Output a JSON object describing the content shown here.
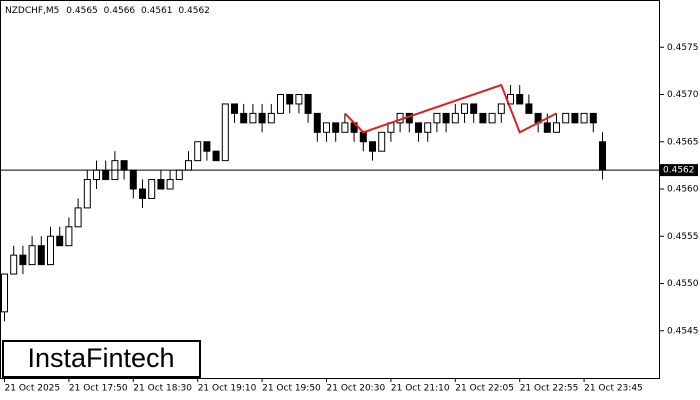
{
  "chart_data": {
    "type": "candlestick",
    "symbol": "NZDCHF,M5",
    "open": [
      0.4547,
      0.4551,
      0.4553,
      0.4552,
      0.4554,
      0.4552,
      0.4555,
      0.4554,
      0.4556,
      0.4558,
      0.4561,
      0.4562,
      0.4561,
      0.4563,
      0.4562,
      0.456,
      0.4559,
      0.4561,
      0.456,
      0.4561,
      0.4562,
      0.4563,
      0.4565,
      0.4564,
      0.4563,
      0.4569,
      0.4568,
      0.4567,
      0.4568,
      0.4567,
      0.4568,
      0.457,
      0.4569,
      0.457,
      0.4568,
      0.4566,
      0.4567,
      0.4566,
      0.4567,
      0.4566,
      0.4565,
      0.4564,
      0.4566,
      0.4567,
      0.4568,
      0.4567,
      0.4566,
      0.4567,
      0.4568,
      0.4567,
      0.4568,
      0.4569,
      0.4568,
      0.4567,
      0.4568,
      0.4569,
      0.457,
      0.4569,
      0.4568,
      0.4567,
      0.4566,
      0.4567,
      0.4568,
      0.4567,
      0.4568,
      0.4565
    ],
    "high": [
      0.4551,
      0.4554,
      0.4554,
      0.4555,
      0.4555,
      0.4556,
      0.4556,
      0.4557,
      0.4559,
      0.4562,
      0.4563,
      0.4563,
      0.4564,
      0.4563,
      0.4562,
      0.4561,
      0.4561,
      0.4562,
      0.4562,
      0.4562,
      0.4564,
      0.4565,
      0.4565,
      0.4564,
      0.4569,
      0.4569,
      0.4569,
      0.4569,
      0.4569,
      0.4569,
      0.457,
      0.457,
      0.457,
      0.457,
      0.4568,
      0.4567,
      0.4567,
      0.4568,
      0.4567,
      0.4566,
      0.4565,
      0.4566,
      0.4567,
      0.4568,
      0.4568,
      0.4567,
      0.4567,
      0.4568,
      0.4568,
      0.4569,
      0.4569,
      0.4569,
      0.4568,
      0.4568,
      0.4569,
      0.4571,
      0.4571,
      0.457,
      0.4568,
      0.4568,
      0.4568,
      0.4568,
      0.4568,
      0.4568,
      0.4568,
      0.4566
    ],
    "low": [
      0.4546,
      0.4551,
      0.4551,
      0.4552,
      0.4552,
      0.4552,
      0.4554,
      0.4554,
      0.4556,
      0.4558,
      0.456,
      0.4561,
      0.4561,
      0.4561,
      0.4559,
      0.4558,
      0.4559,
      0.456,
      0.456,
      0.4561,
      0.4562,
      0.4563,
      0.4563,
      0.4563,
      0.4563,
      0.4567,
      0.4567,
      0.4567,
      0.4566,
      0.4567,
      0.4568,
      0.4568,
      0.4568,
      0.4567,
      0.4565,
      0.4565,
      0.4565,
      0.4566,
      0.4565,
      0.4564,
      0.4563,
      0.4564,
      0.4565,
      0.4566,
      0.4566,
      0.4565,
      0.4565,
      0.4566,
      0.4566,
      0.4567,
      0.4567,
      0.4567,
      0.4567,
      0.4567,
      0.4567,
      0.4569,
      0.4569,
      0.4568,
      0.4566,
      0.4566,
      0.4566,
      0.4567,
      0.4567,
      0.4567,
      0.4566,
      0.4561
    ],
    "close": [
      0.4551,
      0.4553,
      0.4552,
      0.4554,
      0.4552,
      0.4555,
      0.4554,
      0.4556,
      0.4558,
      0.4561,
      0.4562,
      0.4561,
      0.4563,
      0.4562,
      0.456,
      0.4559,
      0.4561,
      0.456,
      0.4561,
      0.4562,
      0.4563,
      0.4565,
      0.4564,
      0.4563,
      0.4569,
      0.4568,
      0.4567,
      0.4568,
      0.4567,
      0.4568,
      0.457,
      0.4569,
      0.457,
      0.4568,
      0.4566,
      0.4567,
      0.4566,
      0.4567,
      0.4566,
      0.4565,
      0.4564,
      0.4566,
      0.4567,
      0.4568,
      0.4567,
      0.4566,
      0.4567,
      0.4568,
      0.4567,
      0.4568,
      0.4569,
      0.4568,
      0.4567,
      0.4568,
      0.4569,
      0.457,
      0.4569,
      0.4568,
      0.4567,
      0.4566,
      0.4567,
      0.4568,
      0.4567,
      0.4568,
      0.4567,
      0.4562
    ],
    "pattern": {
      "color": "#e02020",
      "x": [
        37,
        39,
        54,
        56,
        60
      ],
      "values": [
        0.4568,
        0.4566,
        0.4571,
        0.4566,
        0.4568
      ]
    },
    "ylim": [
      0.454,
      0.458
    ],
    "yticks": [
      0.4545,
      {
        "value": 0.455,
        "label": "0.4550"
      },
      0.4555,
      {
        "value": 0.456,
        "label": "0.4560"
      },
      0.4565,
      {
        "value": 0.457,
        "label": "0.4570"
      },
      0.4575
    ],
    "xticks": [
      {
        "value": 0,
        "label": "21 Oct 2025"
      },
      {
        "value": 7,
        "label": "21 Oct 17:50"
      },
      {
        "value": 14,
        "label": "21 Oct 18:30"
      },
      {
        "value": 21,
        "label": "21 Oct 19:10"
      },
      {
        "value": 28,
        "label": "21 Oct 19:50"
      },
      {
        "value": 35,
        "label": "21 Oct 20:30"
      },
      {
        "value": 42,
        "label": "21 Oct 21:10"
      },
      {
        "value": 49,
        "label": "21 Oct 22:05"
      },
      {
        "value": 56,
        "label": "21 Oct 22:55"
      },
      {
        "value": 63,
        "label": "21 Oct 23:45"
      }
    ],
    "logo": "InstaFintech"
  }
}
